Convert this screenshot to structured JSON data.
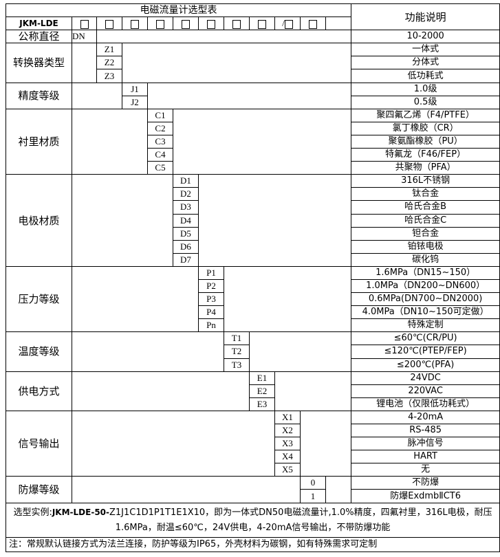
{
  "title": "电磁流量计选型表",
  "function_header": "功能说明",
  "model": "JKM-LDE",
  "code_boxes": [
    "□",
    "□",
    "□",
    "□",
    "□",
    "□",
    "□",
    "□",
    "/□",
    "□"
  ],
  "dn_row": {
    "label": "公称直径",
    "code": "DN",
    "desc": "10-2000"
  },
  "groups": [
    {
      "label": "转换器类型",
      "col": 2,
      "codes": [
        "Z1",
        "Z2",
        "Z3"
      ],
      "descs": [
        "一体式",
        "分体式",
        "低功耗式"
      ]
    },
    {
      "label": "精度等级",
      "col": 3,
      "codes": [
        "J1",
        "J2"
      ],
      "descs": [
        "1.0级",
        "0.5级"
      ]
    },
    {
      "label": "衬里材质",
      "col": 4,
      "codes": [
        "C1",
        "C2",
        "C3",
        "C4",
        "C5"
      ],
      "descs": [
        "聚四氟乙烯（F4/PTFE）",
        "氯丁橡胶（CR）",
        "聚氨酯橡胶（PU）",
        "特氟龙（F46/FEP）",
        "共聚物（PFA）"
      ]
    },
    {
      "label": "电极材质",
      "col": 5,
      "codes": [
        "D1",
        "D2",
        "D3",
        "D4",
        "D5",
        "D6",
        "D7"
      ],
      "descs": [
        "316L不锈钢",
        "钛合金",
        "哈氏合金B",
        "哈氏合金C",
        "钽合金",
        "铂铱电极",
        "碳化钨"
      ]
    },
    {
      "label": "压力等级",
      "col": 6,
      "codes": [
        "P1",
        "P2",
        "P3",
        "P4",
        "Pn"
      ],
      "descs": [
        "1.6MPa（DN15~150）",
        "1.0MPa（DN200~DN600）",
        "0.6MPa(DN700~DN2000)",
        "4.0MPa（DN10~150可定做）",
        "特殊定制"
      ]
    },
    {
      "label": "温度等级",
      "col": 7,
      "codes": [
        "T1",
        "T2",
        "T3"
      ],
      "descs": [
        "≤60℃(CR/PU)",
        "≤120℃(PTEP/FEP)",
        "≤200℃(PFA)"
      ]
    },
    {
      "label": "供电方式",
      "col": 8,
      "codes": [
        "E1",
        "E2",
        "E3"
      ],
      "descs": [
        "24VDC",
        "220VAC",
        "锂电池（仅限低功耗式）"
      ]
    },
    {
      "label": "信号输出",
      "col": 9,
      "codes": [
        "X1",
        "X2",
        "X3",
        "X4",
        "X5"
      ],
      "descs": [
        "4-20mA",
        "RS-485",
        "脉冲信号",
        "HART",
        "无"
      ]
    },
    {
      "label": "防爆等级",
      "col": 10,
      "codes": [
        "0",
        "1"
      ],
      "descs": [
        "不防爆",
        "防爆ExdmbⅡCT6"
      ]
    }
  ],
  "example": {
    "prefix": "选型实例:",
    "model_code": "JKM-LDE-50-",
    "text": "Z1J1C1D1P1T1E1X10，即为一体式DN50电磁流量计,1.0%精度，四氟衬里，316L电极，耐压1.6MPa，耐温≤60℃，24V供电，4-20mA信号输出，不带防爆功能"
  },
  "note": "注：常规默认链接方式为法兰连接，防护等级为IP65，外壳材料为碳钢，如有特殊需求可定制"
}
